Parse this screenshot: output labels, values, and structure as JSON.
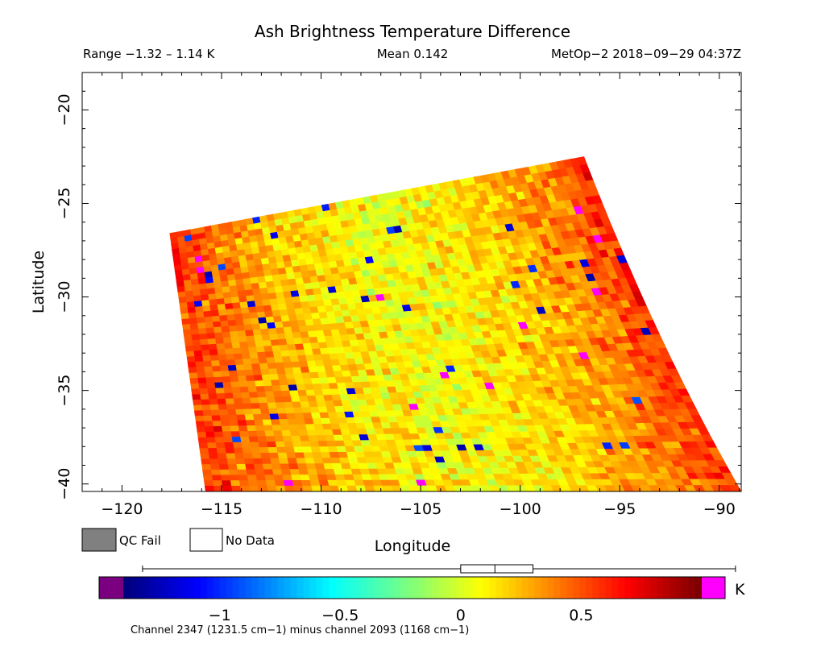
{
  "chart_data": {
    "type": "heatmap",
    "title": "Ash Brightness Temperature Difference",
    "header": {
      "range_text": "Range −1.32 – 1.14 K",
      "mean_text": "Mean 0.142",
      "source_text": "MetOp−2 2018−09−29 04:37Z"
    },
    "xlabel": "Longitude",
    "ylabel": "Latitude",
    "xlim": [
      -122.0,
      -88.9
    ],
    "ylim": [
      -40.4,
      -18.0
    ],
    "x_ticks": [
      -120,
      -115,
      -110,
      -105,
      -100,
      -95,
      -90
    ],
    "x_tick_labels": [
      "−120",
      "−115",
      "−110",
      "−105",
      "−100",
      "−95",
      "−90"
    ],
    "y_ticks": [
      -20,
      -25,
      -30,
      -35,
      -40
    ],
    "y_tick_labels": [
      "−20",
      "−25",
      "−30",
      "−35",
      "−40"
    ],
    "swath": {
      "top_left": [
        -117.6,
        -26.6
      ],
      "top_right": [
        -96.8,
        -22.5
      ],
      "bottom_left": [
        -115.8,
        -40.4
      ],
      "bottom_right": [
        -88.9,
        -40.4
      ],
      "right_edge_mid": [
        -93.0,
        -32.0
      ]
    },
    "scan_rows": 48,
    "scan_cols": 60,
    "value_range": [
      -1.32,
      1.14
    ],
    "mean": 0.142,
    "colorbar": {
      "vmin": -1.4,
      "vmax": 1.0,
      "ticks": [
        -1,
        -0.5,
        0,
        0.5
      ],
      "tick_labels": [
        "−1",
        "−0.5",
        "0",
        "0.5"
      ],
      "unit": "K",
      "under_color": "#7b0080",
      "over_color": "#ff00ff",
      "stats_box": {
        "min": -1.32,
        "mean": 0.142,
        "max": 1.14,
        "box_low": 0.0,
        "box_high": 0.3
      },
      "caption": "Channel 2347 (1231.5 cm−1) minus channel 2093 (1168 cm−1)"
    },
    "legend": [
      {
        "label": "QC Fail",
        "color": "#808080"
      },
      {
        "label": "No Data",
        "color": "#ffffff"
      }
    ]
  }
}
